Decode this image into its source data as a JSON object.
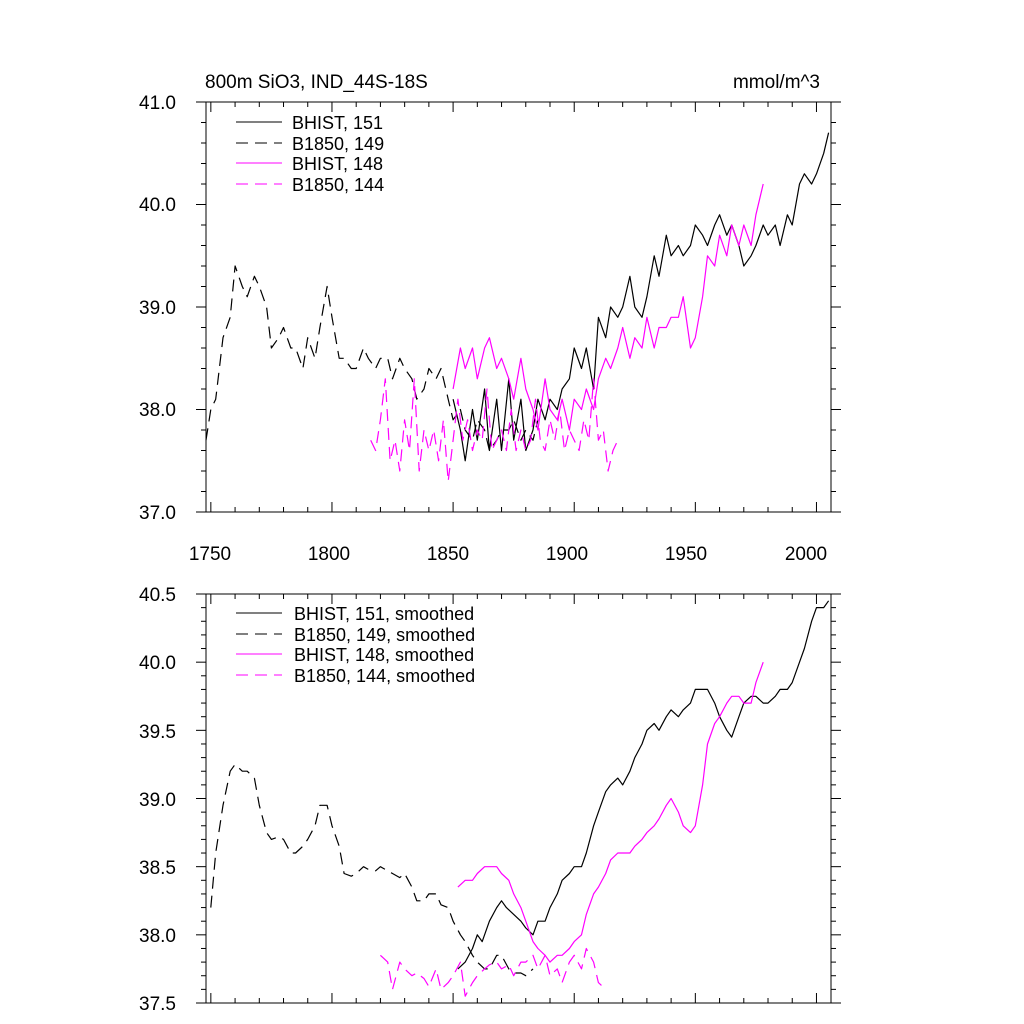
{
  "colors": {
    "black": "#000000",
    "magenta": "#ff00ff"
  },
  "chart_data": [
    {
      "type": "line",
      "title_left": "800m SiO3, IND_44S-18S",
      "title_right": "mmol/m^3",
      "ylim": [
        37.0,
        41.0
      ],
      "y_ticks": [
        "37.0",
        "38.0",
        "39.0",
        "40.0",
        "41.0"
      ],
      "xlim": [
        1748,
        2006
      ],
      "x_ticks": [
        "1750",
        "1800",
        "1850",
        "1900",
        "1950",
        "2000"
      ],
      "series": [
        {
          "name": "BHIST, 151",
          "color": "#000000",
          "dash": "solid",
          "x": [
            1850,
            1853,
            1855,
            1858,
            1860,
            1863,
            1865,
            1868,
            1870,
            1873,
            1875,
            1878,
            1880,
            1883,
            1885,
            1888,
            1890,
            1893,
            1895,
            1898,
            1900,
            1903,
            1905,
            1908,
            1910,
            1913,
            1915,
            1918,
            1920,
            1923,
            1925,
            1928,
            1930,
            1933,
            1935,
            1938,
            1940,
            1943,
            1945,
            1948,
            1950,
            1953,
            1955,
            1958,
            1960,
            1963,
            1965,
            1968,
            1970,
            1973,
            1975,
            1978,
            1980,
            1983,
            1985,
            1988,
            1990,
            1993,
            1995,
            1998,
            2000,
            2003,
            2005
          ],
          "values": [
            38.1,
            37.8,
            37.5,
            38.0,
            37.7,
            38.2,
            37.6,
            38.1,
            37.6,
            38.3,
            37.7,
            38.1,
            37.6,
            37.8,
            38.1,
            37.9,
            38.1,
            38.0,
            38.2,
            38.3,
            38.6,
            38.4,
            38.6,
            38.2,
            38.9,
            38.7,
            39.0,
            38.9,
            39.0,
            39.3,
            39.0,
            38.9,
            39.1,
            39.5,
            39.3,
            39.7,
            39.5,
            39.6,
            39.5,
            39.6,
            39.8,
            39.7,
            39.6,
            39.8,
            39.9,
            39.7,
            39.8,
            39.6,
            39.4,
            39.5,
            39.6,
            39.8,
            39.7,
            39.8,
            39.6,
            39.9,
            39.8,
            40.2,
            40.3,
            40.2,
            40.3,
            40.5,
            40.7
          ]
        },
        {
          "name": "B1850, 149",
          "color": "#000000",
          "dash": "dashed",
          "x": [
            1748,
            1750,
            1752,
            1755,
            1758,
            1760,
            1763,
            1765,
            1768,
            1770,
            1773,
            1775,
            1778,
            1780,
            1783,
            1785,
            1788,
            1790,
            1793,
            1795,
            1798,
            1800,
            1803,
            1805,
            1808,
            1810,
            1813,
            1815,
            1818,
            1820,
            1823,
            1825,
            1828,
            1830,
            1833,
            1835,
            1838,
            1840,
            1843,
            1845,
            1848,
            1850,
            1853,
            1855,
            1858,
            1860,
            1863,
            1865,
            1868,
            1870,
            1873,
            1875,
            1878,
            1880,
            1883,
            1885
          ],
          "values": [
            37.7,
            38.0,
            38.1,
            38.7,
            38.9,
            39.4,
            39.2,
            39.1,
            39.3,
            39.2,
            39.0,
            38.6,
            38.7,
            38.8,
            38.6,
            38.6,
            38.4,
            38.7,
            38.5,
            38.8,
            39.2,
            38.9,
            38.5,
            38.5,
            38.4,
            38.4,
            38.6,
            38.5,
            38.4,
            38.5,
            38.5,
            38.3,
            38.5,
            38.4,
            38.3,
            38.1,
            38.2,
            38.4,
            38.3,
            38.4,
            38.1,
            37.9,
            38.0,
            37.8,
            37.7,
            37.9,
            37.8,
            37.6,
            37.7,
            37.8,
            37.8,
            37.9,
            37.7,
            37.8,
            37.7,
            37.9
          ]
        },
        {
          "name": "BHIST, 148",
          "color": "#ff00ff",
          "dash": "solid",
          "x": [
            1850,
            1853,
            1855,
            1858,
            1860,
            1863,
            1865,
            1868,
            1870,
            1873,
            1875,
            1878,
            1880,
            1883,
            1885,
            1888,
            1890,
            1893,
            1895,
            1898,
            1900,
            1903,
            1905,
            1908,
            1910,
            1913,
            1915,
            1918,
            1920,
            1923,
            1925,
            1928,
            1930,
            1933,
            1935,
            1938,
            1940,
            1943,
            1945,
            1948,
            1950,
            1953,
            1955,
            1958,
            1960,
            1963,
            1965,
            1968,
            1970,
            1973,
            1975,
            1978
          ],
          "values": [
            38.2,
            38.6,
            38.4,
            38.6,
            38.3,
            38.6,
            38.7,
            38.4,
            38.5,
            38.3,
            38.1,
            38.5,
            38.2,
            38.0,
            37.8,
            38.3,
            38.0,
            37.9,
            38.1,
            37.8,
            38.1,
            38.0,
            38.2,
            38.0,
            38.3,
            38.5,
            38.4,
            38.6,
            38.8,
            38.5,
            38.7,
            38.6,
            38.9,
            38.6,
            38.8,
            38.8,
            38.9,
            38.9,
            39.1,
            38.6,
            38.7,
            39.1,
            39.5,
            39.4,
            39.7,
            39.5,
            39.8,
            39.6,
            39.8,
            39.6,
            39.9,
            40.2
          ]
        },
        {
          "name": "B1850, 144",
          "color": "#ff00ff",
          "dash": "dashed",
          "x": [
            1816,
            1818,
            1820,
            1822,
            1824,
            1826,
            1828,
            1830,
            1832,
            1834,
            1836,
            1838,
            1840,
            1842,
            1844,
            1846,
            1848,
            1850,
            1852,
            1854,
            1856,
            1858,
            1860,
            1862,
            1864,
            1866,
            1868,
            1870,
            1872,
            1874,
            1876,
            1878,
            1880,
            1882,
            1884,
            1886,
            1888,
            1890,
            1892,
            1894,
            1896,
            1898,
            1900,
            1902,
            1904,
            1906,
            1908,
            1910,
            1912,
            1914,
            1916,
            1918
          ],
          "values": [
            37.7,
            37.6,
            37.9,
            38.3,
            37.5,
            37.7,
            37.4,
            37.9,
            37.6,
            38.3,
            37.4,
            37.8,
            37.6,
            37.8,
            37.5,
            37.9,
            37.3,
            37.7,
            38.1,
            37.7,
            37.9,
            37.6,
            37.8,
            37.7,
            38.2,
            37.6,
            37.7,
            37.8,
            37.6,
            38.0,
            37.6,
            37.8,
            37.6,
            37.7,
            38.1,
            37.7,
            37.6,
            37.9,
            37.7,
            38.0,
            37.6,
            37.8,
            37.7,
            37.6,
            37.9,
            37.7,
            38.3,
            37.7,
            37.8,
            37.4,
            37.6,
            37.7
          ]
        }
      ]
    },
    {
      "type": "line",
      "ylim": [
        37.5,
        40.5
      ],
      "y_ticks": [
        "37.5",
        "38.0",
        "38.5",
        "39.0",
        "39.5",
        "40.0",
        "40.5"
      ],
      "xlim": [
        1748,
        2006
      ],
      "series": [
        {
          "name": "BHIST, 151, smoothed",
          "color": "#000000",
          "dash": "solid",
          "x": [
            1852,
            1855,
            1858,
            1860,
            1862,
            1865,
            1868,
            1870,
            1872,
            1875,
            1878,
            1880,
            1883,
            1885,
            1888,
            1890,
            1893,
            1895,
            1898,
            1900,
            1903,
            1905,
            1908,
            1910,
            1913,
            1915,
            1918,
            1920,
            1923,
            1925,
            1928,
            1930,
            1933,
            1935,
            1938,
            1940,
            1943,
            1945,
            1948,
            1950,
            1953,
            1955,
            1958,
            1960,
            1963,
            1965,
            1968,
            1970,
            1973,
            1975,
            1978,
            1980,
            1983,
            1985,
            1988,
            1990,
            1993,
            1995,
            1998,
            2000,
            2003,
            2005
          ],
          "values": [
            37.75,
            37.8,
            37.9,
            38.0,
            37.95,
            38.1,
            38.2,
            38.25,
            38.2,
            38.15,
            38.1,
            38.05,
            38.0,
            38.1,
            38.1,
            38.2,
            38.3,
            38.4,
            38.45,
            38.5,
            38.5,
            38.6,
            38.8,
            38.9,
            39.05,
            39.1,
            39.15,
            39.1,
            39.2,
            39.3,
            39.4,
            39.5,
            39.55,
            39.5,
            39.6,
            39.65,
            39.6,
            39.65,
            39.7,
            39.8,
            39.8,
            39.8,
            39.7,
            39.6,
            39.5,
            39.45,
            39.6,
            39.7,
            39.75,
            39.75,
            39.7,
            39.7,
            39.75,
            39.8,
            39.8,
            39.85,
            40.0,
            40.1,
            40.3,
            40.4,
            40.4,
            40.45
          ]
        },
        {
          "name": "B1850, 149, smoothed",
          "color": "#000000",
          "dash": "dashed",
          "x": [
            1750,
            1752,
            1755,
            1758,
            1760,
            1763,
            1765,
            1768,
            1770,
            1773,
            1775,
            1778,
            1780,
            1783,
            1785,
            1788,
            1790,
            1793,
            1795,
            1798,
            1800,
            1803,
            1805,
            1808,
            1810,
            1813,
            1815,
            1818,
            1820,
            1823,
            1825,
            1828,
            1830,
            1833,
            1835,
            1838,
            1840,
            1843,
            1845,
            1848,
            1850,
            1853,
            1855,
            1858,
            1860,
            1863,
            1865,
            1868,
            1870,
            1873,
            1875,
            1878,
            1880,
            1883
          ],
          "values": [
            38.2,
            38.6,
            38.95,
            39.2,
            39.25,
            39.2,
            39.2,
            39.15,
            38.95,
            38.75,
            38.7,
            38.72,
            38.7,
            38.6,
            38.6,
            38.65,
            38.7,
            38.8,
            38.95,
            38.95,
            38.8,
            38.65,
            38.45,
            38.43,
            38.45,
            38.5,
            38.48,
            38.47,
            38.5,
            38.47,
            38.45,
            38.42,
            38.45,
            38.35,
            38.25,
            38.25,
            38.3,
            38.3,
            38.22,
            38.2,
            38.1,
            38.0,
            37.95,
            37.85,
            37.8,
            37.75,
            37.75,
            37.85,
            37.85,
            37.75,
            37.72,
            37.72,
            37.7,
            37.75
          ]
        },
        {
          "name": "BHIST, 148, smoothed",
          "color": "#ff00ff",
          "dash": "solid",
          "x": [
            1852,
            1855,
            1858,
            1860,
            1863,
            1865,
            1868,
            1870,
            1873,
            1875,
            1878,
            1880,
            1883,
            1885,
            1888,
            1890,
            1893,
            1895,
            1898,
            1900,
            1903,
            1905,
            1908,
            1910,
            1913,
            1915,
            1918,
            1920,
            1923,
            1925,
            1928,
            1930,
            1933,
            1935,
            1938,
            1940,
            1943,
            1945,
            1948,
            1950,
            1953,
            1955,
            1958,
            1960,
            1963,
            1965,
            1968,
            1970,
            1973,
            1975,
            1978
          ],
          "values": [
            38.35,
            38.4,
            38.4,
            38.45,
            38.5,
            38.5,
            38.5,
            38.45,
            38.4,
            38.3,
            38.2,
            38.1,
            37.95,
            37.9,
            37.85,
            37.8,
            37.85,
            37.85,
            37.9,
            37.95,
            38.0,
            38.15,
            38.3,
            38.35,
            38.45,
            38.55,
            38.6,
            38.6,
            38.6,
            38.65,
            38.7,
            38.75,
            38.8,
            38.85,
            38.95,
            39.0,
            38.9,
            38.8,
            38.75,
            38.8,
            39.1,
            39.4,
            39.55,
            39.6,
            39.7,
            39.75,
            39.75,
            39.7,
            39.7,
            39.85,
            40.0
          ]
        },
        {
          "name": "B1850, 144, smoothed",
          "color": "#ff00ff",
          "dash": "dashed",
          "x": [
            1820,
            1823,
            1825,
            1828,
            1830,
            1833,
            1835,
            1838,
            1840,
            1843,
            1845,
            1848,
            1850,
            1853,
            1855,
            1858,
            1860,
            1863,
            1865,
            1868,
            1870,
            1873,
            1875,
            1878,
            1880,
            1883,
            1885,
            1888,
            1890,
            1893,
            1895,
            1898,
            1900,
            1903,
            1905,
            1908,
            1910,
            1913
          ],
          "values": [
            37.85,
            37.8,
            37.6,
            37.8,
            37.75,
            37.7,
            37.72,
            37.68,
            37.62,
            37.75,
            37.6,
            37.65,
            37.7,
            37.8,
            37.55,
            37.65,
            37.7,
            37.75,
            37.78,
            37.8,
            37.75,
            37.78,
            37.7,
            37.8,
            37.8,
            37.85,
            37.75,
            37.85,
            37.7,
            37.75,
            37.65,
            37.8,
            37.85,
            37.75,
            37.9,
            37.8,
            37.65,
            37.6
          ]
        }
      ]
    }
  ]
}
